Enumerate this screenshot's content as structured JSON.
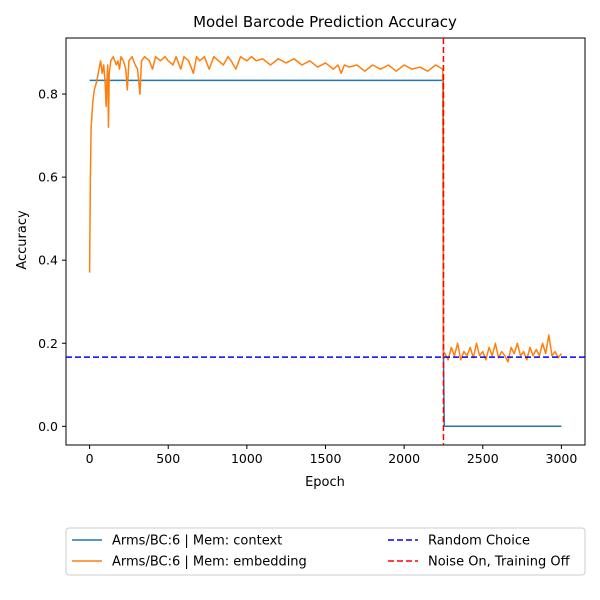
{
  "chart_data": {
    "type": "line",
    "title": "Model Barcode Prediction Accuracy",
    "xlabel": "Epoch",
    "ylabel": "Accuracy",
    "xlim": [
      -150,
      3150
    ],
    "ylim": [
      -0.045,
      0.935
    ],
    "xticks": [
      0,
      500,
      1000,
      1500,
      2000,
      2500,
      3000
    ],
    "yticks": [
      0.0,
      0.2,
      0.4,
      0.6,
      0.8
    ],
    "xtick_labels": [
      "0",
      "500",
      "1000",
      "1500",
      "2000",
      "2500",
      "3000"
    ],
    "ytick_labels": [
      "0.0",
      "0.2",
      "0.4",
      "0.6",
      "0.8"
    ],
    "legend_position": "below plot, two columns",
    "series": [
      {
        "name": "Arms/BC:6 | Mem: context",
        "color": "#1f77b4",
        "style": "solid",
        "points": [
          [
            0,
            0.833
          ],
          [
            2249,
            0.833
          ],
          [
            2250,
            0.17
          ],
          [
            2255,
            0.0
          ],
          [
            3000,
            0.0
          ]
        ]
      },
      {
        "name": "Arms/BC:6 | Mem: embedding",
        "color": "#ff7f0e",
        "style": "solid",
        "points": [
          [
            0,
            0.37
          ],
          [
            5,
            0.6
          ],
          [
            10,
            0.72
          ],
          [
            20,
            0.78
          ],
          [
            30,
            0.81
          ],
          [
            45,
            0.83
          ],
          [
            60,
            0.86
          ],
          [
            70,
            0.88
          ],
          [
            80,
            0.85
          ],
          [
            90,
            0.87
          ],
          [
            100,
            0.82
          ],
          [
            105,
            0.77
          ],
          [
            110,
            0.83
          ],
          [
            115,
            0.87
          ],
          [
            120,
            0.72
          ],
          [
            125,
            0.85
          ],
          [
            135,
            0.88
          ],
          [
            150,
            0.89
          ],
          [
            170,
            0.87
          ],
          [
            180,
            0.88
          ],
          [
            190,
            0.86
          ],
          [
            200,
            0.89
          ],
          [
            215,
            0.88
          ],
          [
            230,
            0.86
          ],
          [
            240,
            0.81
          ],
          [
            250,
            0.88
          ],
          [
            270,
            0.89
          ],
          [
            290,
            0.87
          ],
          [
            305,
            0.86
          ],
          [
            320,
            0.8
          ],
          [
            330,
            0.88
          ],
          [
            350,
            0.89
          ],
          [
            380,
            0.88
          ],
          [
            400,
            0.86
          ],
          [
            420,
            0.89
          ],
          [
            450,
            0.88
          ],
          [
            480,
            0.89
          ],
          [
            500,
            0.88
          ],
          [
            530,
            0.87
          ],
          [
            550,
            0.89
          ],
          [
            580,
            0.86
          ],
          [
            600,
            0.89
          ],
          [
            630,
            0.88
          ],
          [
            660,
            0.85
          ],
          [
            680,
            0.89
          ],
          [
            700,
            0.88
          ],
          [
            730,
            0.89
          ],
          [
            760,
            0.86
          ],
          [
            790,
            0.89
          ],
          [
            820,
            0.88
          ],
          [
            850,
            0.87
          ],
          [
            880,
            0.89
          ],
          [
            900,
            0.88
          ],
          [
            930,
            0.86
          ],
          [
            960,
            0.89
          ],
          [
            1000,
            0.88
          ],
          [
            1030,
            0.89
          ],
          [
            1060,
            0.88
          ],
          [
            1100,
            0.885
          ],
          [
            1150,
            0.87
          ],
          [
            1200,
            0.885
          ],
          [
            1250,
            0.875
          ],
          [
            1300,
            0.885
          ],
          [
            1350,
            0.87
          ],
          [
            1400,
            0.88
          ],
          [
            1450,
            0.865
          ],
          [
            1500,
            0.875
          ],
          [
            1550,
            0.86
          ],
          [
            1580,
            0.87
          ],
          [
            1600,
            0.85
          ],
          [
            1620,
            0.87
          ],
          [
            1650,
            0.865
          ],
          [
            1700,
            0.87
          ],
          [
            1750,
            0.855
          ],
          [
            1800,
            0.87
          ],
          [
            1850,
            0.86
          ],
          [
            1900,
            0.87
          ],
          [
            1950,
            0.855
          ],
          [
            2000,
            0.87
          ],
          [
            2050,
            0.86
          ],
          [
            2100,
            0.865
          ],
          [
            2150,
            0.855
          ],
          [
            2200,
            0.87
          ],
          [
            2245,
            0.86
          ],
          [
            2250,
            0.18
          ],
          [
            2260,
            0.175
          ],
          [
            2280,
            0.16
          ],
          [
            2300,
            0.19
          ],
          [
            2320,
            0.17
          ],
          [
            2340,
            0.2
          ],
          [
            2360,
            0.16
          ],
          [
            2380,
            0.18
          ],
          [
            2400,
            0.17
          ],
          [
            2420,
            0.19
          ],
          [
            2440,
            0.165
          ],
          [
            2460,
            0.2
          ],
          [
            2480,
            0.17
          ],
          [
            2500,
            0.18
          ],
          [
            2520,
            0.16
          ],
          [
            2540,
            0.19
          ],
          [
            2560,
            0.17
          ],
          [
            2580,
            0.2
          ],
          [
            2600,
            0.165
          ],
          [
            2620,
            0.18
          ],
          [
            2640,
            0.17
          ],
          [
            2660,
            0.155
          ],
          [
            2680,
            0.19
          ],
          [
            2700,
            0.175
          ],
          [
            2720,
            0.2
          ],
          [
            2740,
            0.17
          ],
          [
            2760,
            0.18
          ],
          [
            2780,
            0.16
          ],
          [
            2800,
            0.19
          ],
          [
            2820,
            0.17
          ],
          [
            2840,
            0.185
          ],
          [
            2860,
            0.17
          ],
          [
            2880,
            0.2
          ],
          [
            2900,
            0.175
          ],
          [
            2920,
            0.22
          ],
          [
            2940,
            0.17
          ],
          [
            2960,
            0.18
          ],
          [
            2980,
            0.165
          ],
          [
            3000,
            0.175
          ]
        ]
      }
    ],
    "reference_lines": [
      {
        "name": "Random Choice",
        "orientation": "horizontal",
        "value": 0.1667,
        "color": "#0000ff",
        "style": "dashed"
      },
      {
        "name": "Noise On, Training Off",
        "orientation": "vertical",
        "value": 2250,
        "color": "#ff0000",
        "style": "dashed"
      }
    ]
  }
}
